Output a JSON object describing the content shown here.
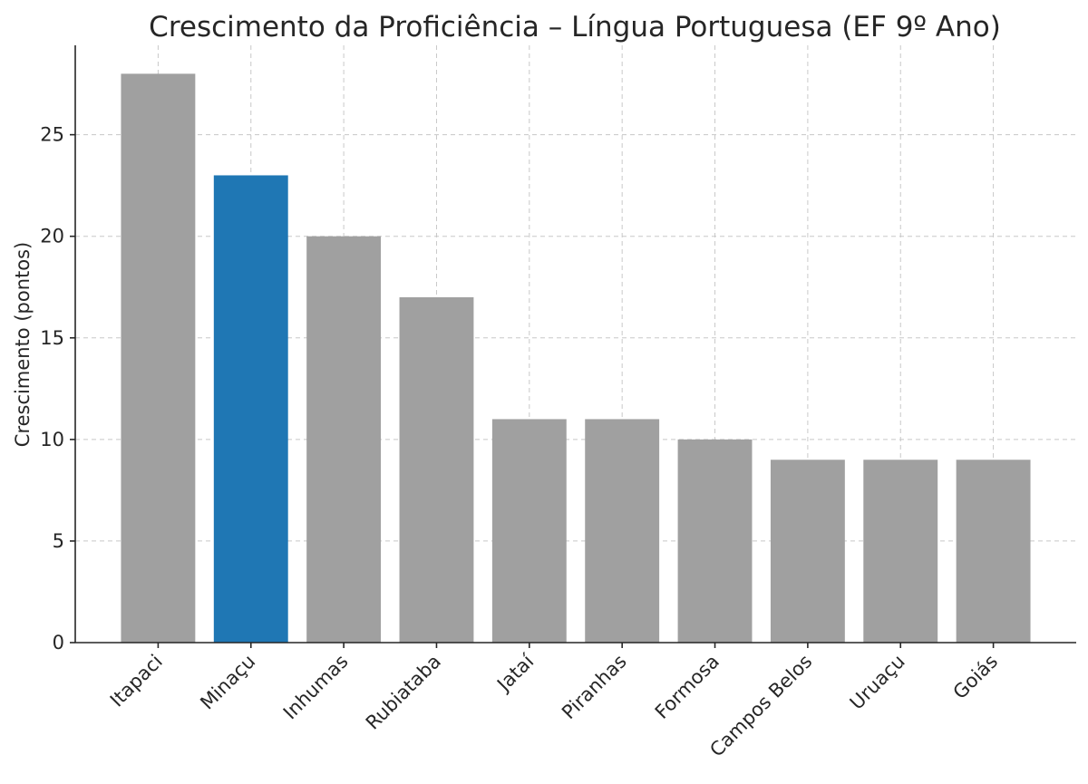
{
  "chart_data": {
    "type": "bar",
    "title": "Crescimento da Proficiência – Língua Portuguesa (EF 9º Ano)",
    "xlabel": "",
    "ylabel": "Crescimento (pontos)",
    "categories": [
      "Itapaci",
      "Minaçu",
      "Inhumas",
      "Rubiataba",
      "Jataí",
      "Piranhas",
      "Formosa",
      "Campos Belos",
      "Uruaçu",
      "Goiás"
    ],
    "values": [
      28,
      23,
      20,
      17,
      11,
      11,
      10,
      9,
      9,
      9
    ],
    "highlight": "Minaçu",
    "ylim": [
      0,
      29.4
    ],
    "yticks": [
      0,
      5,
      10,
      15,
      20,
      25
    ],
    "grid": true,
    "colors": {
      "default": "#a0a0a0",
      "highlight": "#1f77b4"
    }
  }
}
